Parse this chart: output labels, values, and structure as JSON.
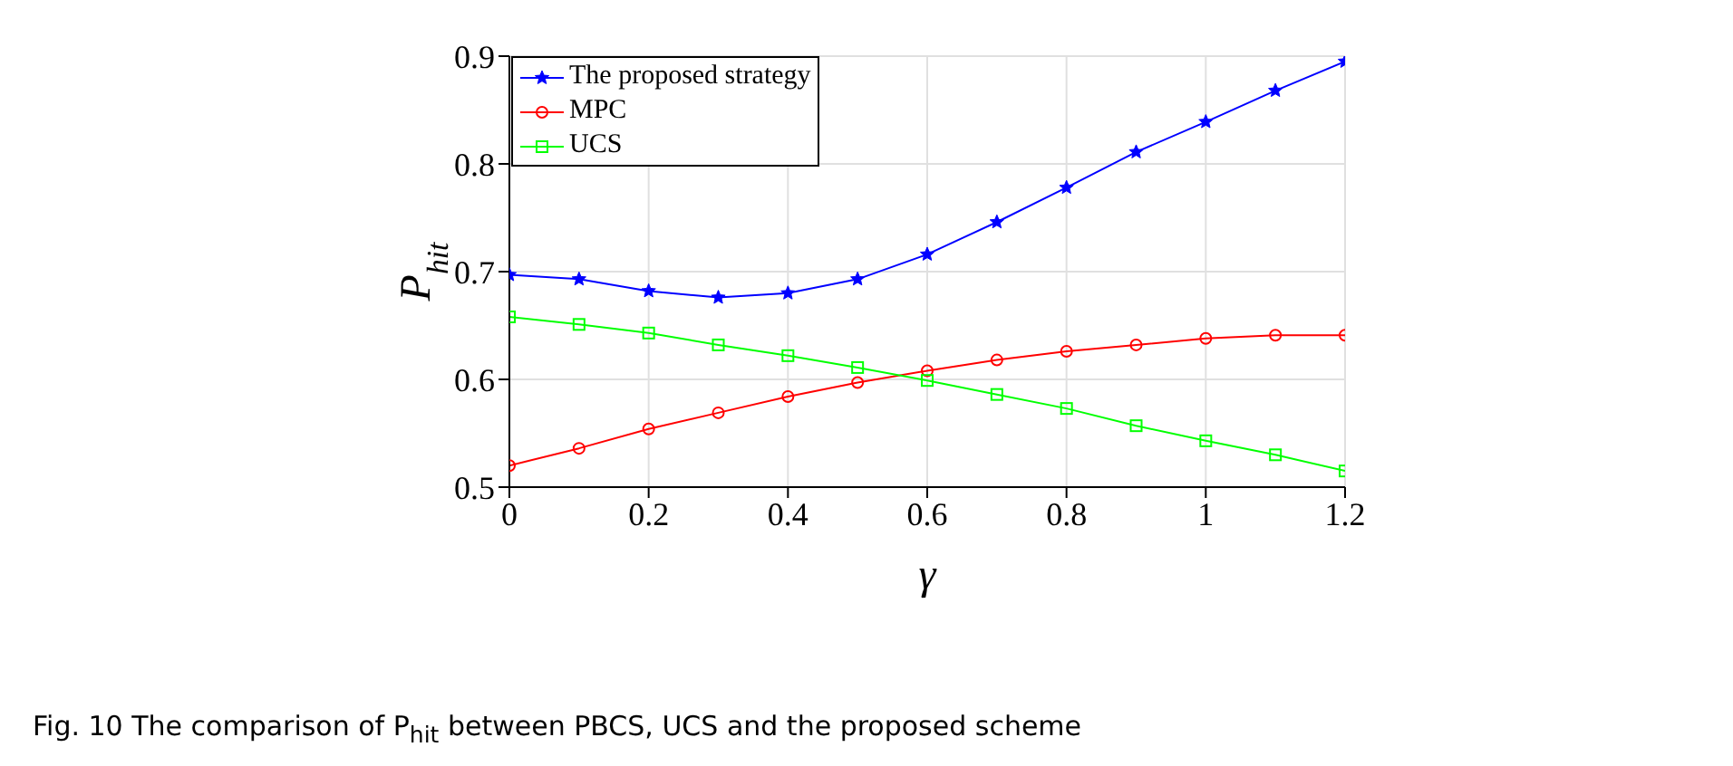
{
  "chart_data": {
    "type": "line",
    "xlabel": "γ",
    "ylabel": "P$_{hit}$",
    "annotations": [
      "Fig. 10 The comparison of P$_{hit}$ between PBCS, UCS and the proposed scheme"
    ],
    "x": [
      0,
      0.1,
      0.2,
      0.3,
      0.4,
      0.5,
      0.6,
      0.7,
      0.8,
      0.9,
      1.0,
      1.1,
      1.2
    ],
    "series": [
      {
        "name": "The proposed strategy",
        "color": "#0000ff",
        "marker": "star",
        "values": [
          0.697,
          0.693,
          0.682,
          0.676,
          0.68,
          0.693,
          0.716,
          0.746,
          0.778,
          0.811,
          0.839,
          0.868,
          0.895
        ]
      },
      {
        "name": "MPC",
        "color": "#ff0000",
        "marker": "circle",
        "values": [
          0.52,
          0.536,
          0.554,
          0.569,
          0.584,
          0.597,
          0.608,
          0.618,
          0.626,
          0.632,
          0.638,
          0.641,
          0.641
        ]
      },
      {
        "name": "UCS",
        "color": "#00ff00",
        "marker": "square",
        "values": [
          0.658,
          0.651,
          0.643,
          0.632,
          0.622,
          0.611,
          0.599,
          0.586,
          0.573,
          0.557,
          0.543,
          0.53,
          0.515
        ]
      }
    ],
    "xlim": [
      0,
      1.2
    ],
    "xticks": [
      0,
      0.2,
      0.4,
      0.6,
      0.8,
      1,
      1.2
    ],
    "ylim": [
      0.5,
      0.9
    ],
    "yticks": [
      0.5,
      0.6,
      0.7,
      0.8,
      0.9
    ],
    "grid": true,
    "legend": "top left",
    "line_style": "solid"
  }
}
